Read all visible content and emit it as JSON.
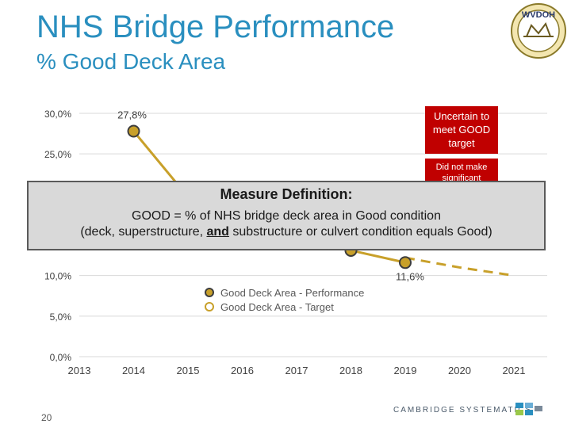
{
  "header": {
    "title": "NHS Bridge Performance",
    "subtitle": "% Good Deck Area",
    "logo_text": "WVDOH"
  },
  "callouts": {
    "uncertain": "Uncertain to meet GOOD target",
    "did_not_make": "Did not make significant"
  },
  "definition": {
    "title": "Measure Definition:",
    "line1": "GOOD = % of NHS bridge deck area in Good condition",
    "line2_prefix": "(deck, superstructure, ",
    "line2_and": "and",
    "line2_suffix": " substructure or culvert condition equals Good)"
  },
  "legend": {
    "performance": "Good Deck Area - Performance",
    "target": "Good Deck Area - Target"
  },
  "footer": {
    "page_number": "20",
    "company": "CAMBRIDGE SYSTEMATICS"
  },
  "colors": {
    "title": "#2a8fbf",
    "performance_marker": "#c8a02a",
    "performance_line": "#c8a02a",
    "callout_red": "#c00000",
    "definition_box": "#d9d9d9"
  },
  "chart_data": {
    "type": "line",
    "categories": [
      "2013",
      "2014",
      "2015",
      "2016",
      "2017",
      "2018",
      "2019",
      "2020",
      "2021"
    ],
    "y_ticks": [
      "0,0%",
      "5,0%",
      "10,0%",
      "25,0%",
      "30,0%"
    ],
    "y_tick_values": [
      0,
      5,
      10,
      25,
      30
    ],
    "ylim": [
      0,
      30
    ],
    "series": [
      {
        "name": "Good Deck Area - Performance",
        "style": "solid",
        "points": [
          {
            "x": "2014",
            "y": 27.8,
            "label": "27,8%"
          },
          {
            "x": "2015",
            "y": 19.7,
            "label": ""
          },
          {
            "x": "2018",
            "y": 13.1,
            "label": "13,1%"
          },
          {
            "x": "2019",
            "y": 11.6,
            "label": "11,6%"
          }
        ]
      },
      {
        "name": "Good Deck Area - Target",
        "style": "dashed",
        "points": [
          {
            "x": "2019",
            "y": 12.2
          },
          {
            "x": "2020",
            "y": 11.0
          },
          {
            "x": "2021",
            "y": 10.0
          }
        ]
      }
    ]
  }
}
